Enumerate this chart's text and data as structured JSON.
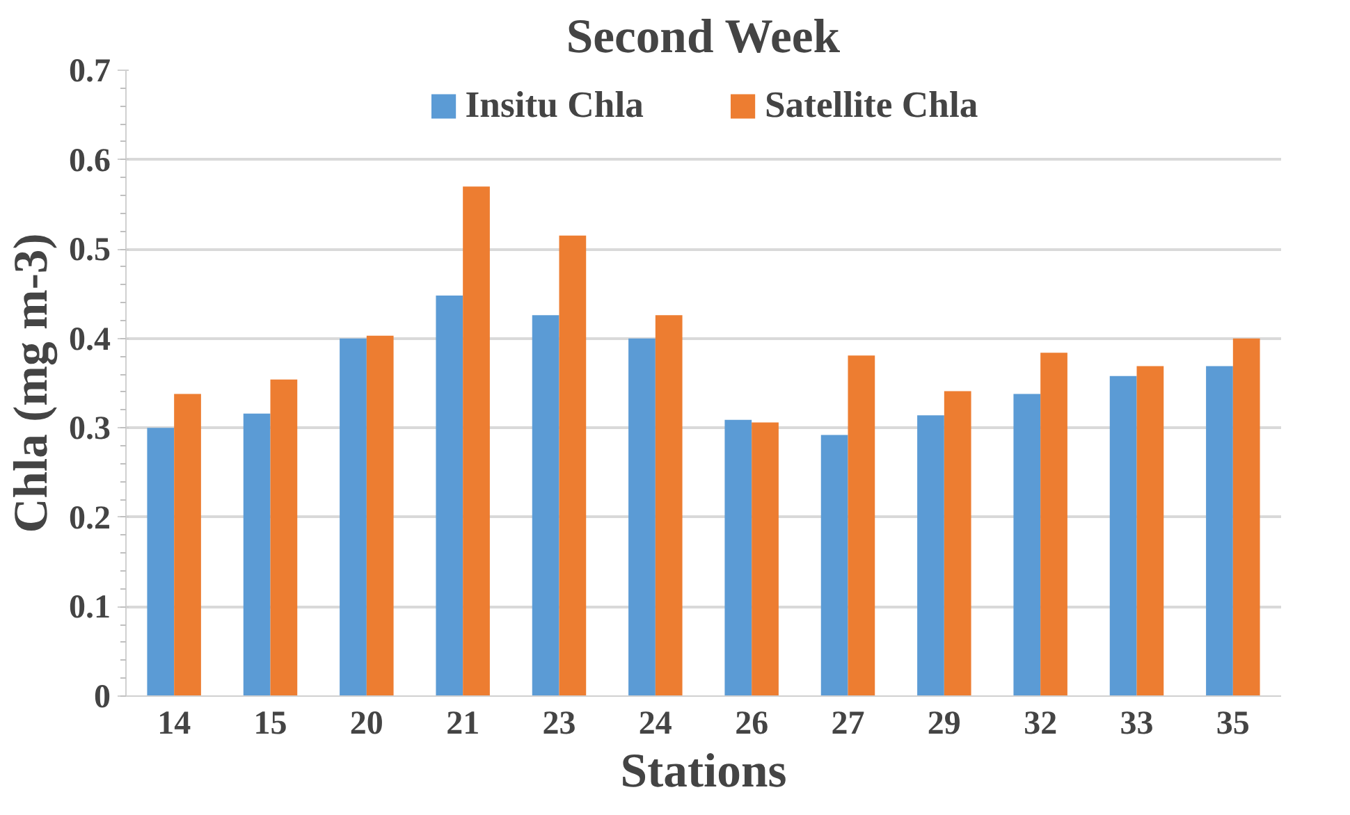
{
  "chart_data": {
    "type": "bar",
    "title": "Second Week",
    "xlabel": "Stations",
    "ylabel": "Chla (mg m-3)",
    "categories": [
      "14",
      "15",
      "20",
      "21",
      "23",
      "24",
      "26",
      "27",
      "29",
      "32",
      "33",
      "35"
    ],
    "series": [
      {
        "name": "Insitu Chla",
        "color": "#5b9bd5",
        "values": [
          0.3,
          0.316,
          0.4,
          0.448,
          0.426,
          0.4,
          0.309,
          0.292,
          0.314,
          0.338,
          0.358,
          0.369
        ]
      },
      {
        "name": "Satellite Chla",
        "color": "#ed7d31",
        "values": [
          0.338,
          0.354,
          0.403,
          0.57,
          0.515,
          0.426,
          0.306,
          0.381,
          0.341,
          0.384,
          0.369,
          0.4
        ]
      }
    ],
    "ylim": [
      0,
      0.7
    ],
    "yticks": [
      0,
      0.1,
      0.2,
      0.3,
      0.4,
      0.5,
      0.6,
      0.7
    ],
    "grid": "y",
    "legend": "top"
  }
}
